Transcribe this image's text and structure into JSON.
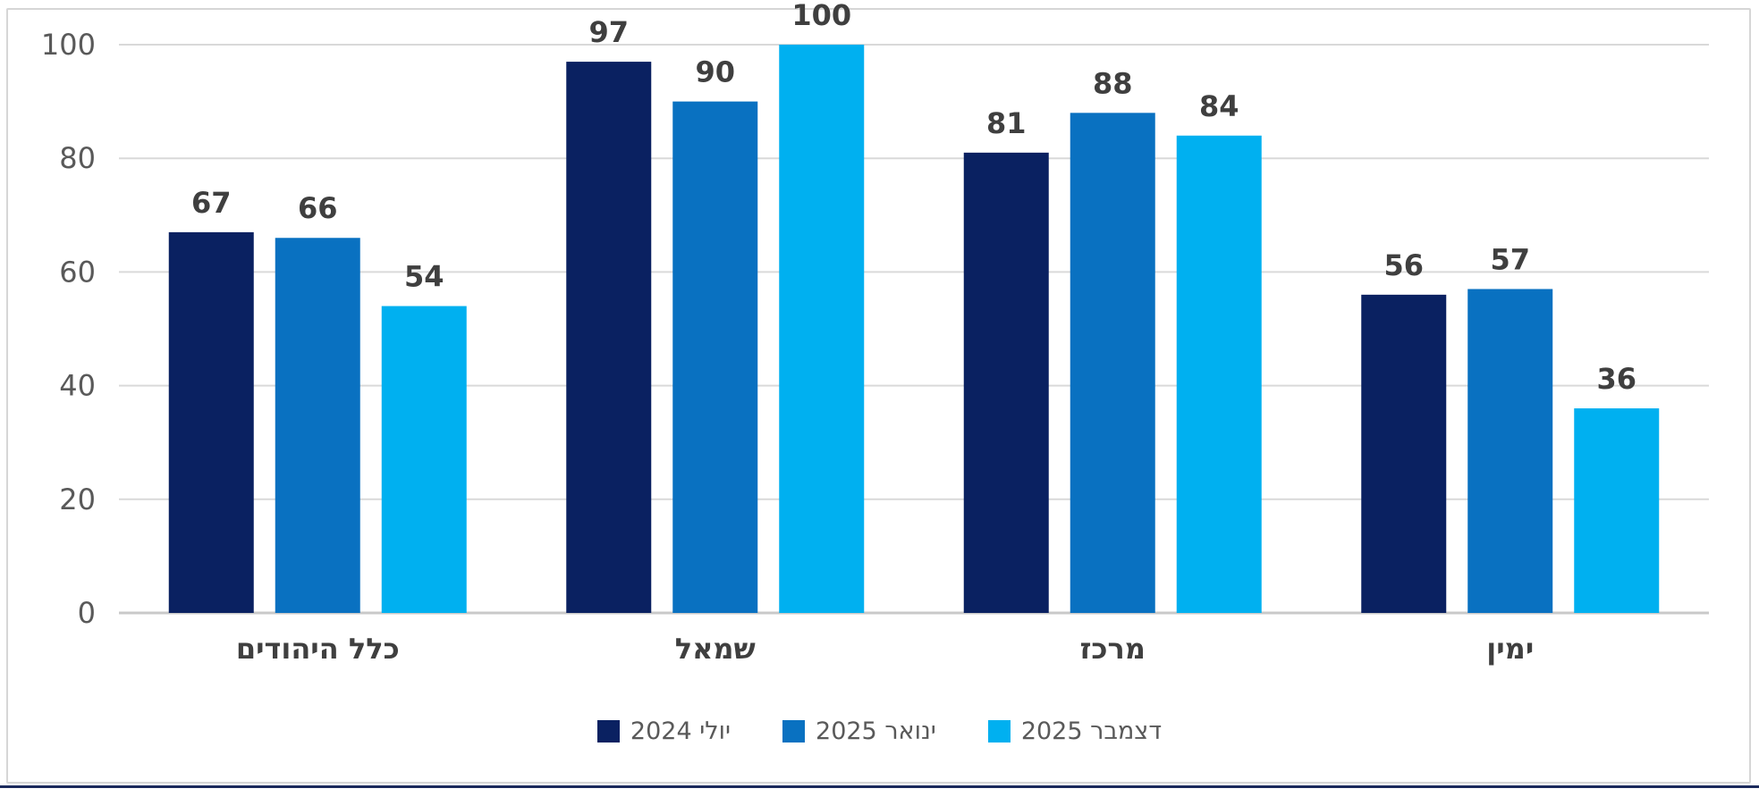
{
  "chart_data": {
    "type": "bar",
    "rtl": true,
    "title": "",
    "xlabel": "",
    "ylabel": "",
    "categories": [
      "כלל היהודים",
      "שמאל",
      "מרכז",
      "ימין"
    ],
    "series": [
      {
        "name": "יולי 2024",
        "color": "#0a2161",
        "values": [
          67,
          97,
          81,
          56
        ]
      },
      {
        "name": "ינואר 2025",
        "color": "#0971c1",
        "values": [
          66,
          90,
          88,
          57
        ]
      },
      {
        "name": "דצמבר 2025",
        "color": "#00b0f0",
        "values": [
          54,
          100,
          84,
          36
        ]
      }
    ],
    "ylim": [
      0,
      100
    ],
    "yticks": [
      0,
      20,
      40,
      60,
      80,
      100
    ],
    "grid": true,
    "value_labels": true,
    "legend_position": "bottom-center"
  },
  "colors": {
    "gridline": "#d9d9d9",
    "baseline": "#c9c9c9",
    "axis_text": "#595959",
    "value_label": "#3f3f3f",
    "category_label": "#3f3f3f",
    "legend_text": "#595959",
    "frame_border": "#d6d6d6",
    "bottom_rule": "#1b2a5c",
    "background": "#ffffff"
  }
}
